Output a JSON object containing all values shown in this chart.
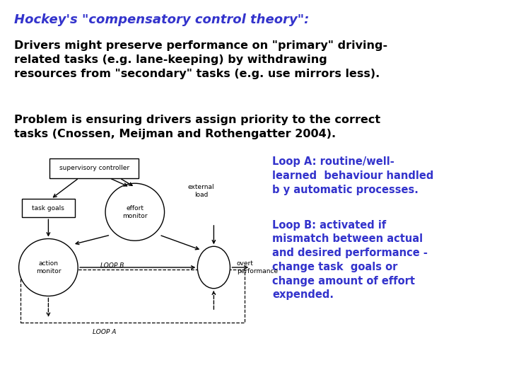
{
  "background_color": "#ffffff",
  "title": "Hockey's \"compensatory control theory\":",
  "title_color": "#3333cc",
  "title_fontsize": 13,
  "para1": "Drivers might preserve performance on \"primary\" driving-\nrelated tasks (e.g. lane-keeping) by withdrawing\nresources from \"secondary\" tasks (e.g. use mirrors less).",
  "para1_fontsize": 11.5,
  "para1_color": "#000000",
  "para2": "Problem is ensuring drivers assign priority to the correct\ntasks (Cnossen, Meijman and Rothengatter 2004).",
  "para2_fontsize": 11.5,
  "para2_color": "#000000",
  "loop_a_text": "Loop A: routine/well-\nlearned  behaviour handled\nb y automatic processes.",
  "loop_a_color": "#3333cc",
  "loop_a_fontsize": 10.5,
  "loop_b_text": "Loop B: activated if\nmismatch between actual\nand desired performance -\nchange task  goals or\nchange amount of effort\nexpended.",
  "loop_b_color": "#3333cc",
  "loop_b_fontsize": 10.5,
  "diagram_color": "#000000",
  "diagram_fill": "#ffffff"
}
